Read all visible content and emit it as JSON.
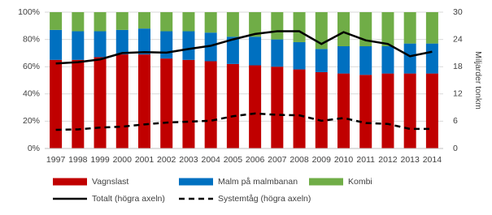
{
  "chart_data": {
    "type": "bar",
    "stacked": true,
    "categories": [
      "1997",
      "1998",
      "1999",
      "2000",
      "2001",
      "2002",
      "2003",
      "2004",
      "2005",
      "2006",
      "2007",
      "2008",
      "2009",
      "2010",
      "2011",
      "2012",
      "2013",
      "2014"
    ],
    "y2label": "Miljarder tonkm",
    "ylim": [
      0,
      100
    ],
    "yticks": [
      {
        "value": 0,
        "label": "0%"
      },
      {
        "value": 20,
        "label": "20%"
      },
      {
        "value": 40,
        "label": "40%"
      },
      {
        "value": 60,
        "label": "60%"
      },
      {
        "value": 80,
        "label": "80%"
      },
      {
        "value": 100,
        "label": "100%"
      }
    ],
    "y2lim": [
      0,
      30
    ],
    "y2ticks": [
      0,
      6,
      12,
      18,
      24,
      30
    ],
    "grid": true,
    "series": [
      {
        "name": "Vagnslast",
        "type": "bar",
        "color": "#c00000",
        "values": [
          65,
          65,
          67,
          69,
          69,
          66,
          65,
          64,
          62,
          61,
          60,
          58,
          56,
          55,
          54,
          55,
          55,
          55
        ]
      },
      {
        "name": "Malm på malmbanan",
        "type": "bar",
        "color": "#0070c0",
        "values": [
          22,
          21,
          19,
          18,
          19,
          20,
          21,
          21,
          20,
          21,
          20,
          20,
          17,
          20,
          21,
          20,
          22,
          22
        ]
      },
      {
        "name": "Kombi",
        "type": "bar",
        "color": "#70ad47",
        "values": [
          13,
          14,
          14,
          13,
          12,
          14,
          14,
          15,
          18,
          18,
          20,
          22,
          27,
          25,
          25,
          25,
          23,
          23
        ]
      },
      {
        "name": "Totalt (högra axeln)",
        "type": "line",
        "axis": "y2",
        "color": "#000000",
        "dashed": false,
        "values": [
          18.7,
          19.0,
          19.6,
          21.0,
          21.2,
          21.1,
          21.9,
          22.6,
          24.0,
          25.2,
          25.8,
          25.8,
          23.0,
          25.6,
          23.8,
          23.0,
          20.3,
          21.3
        ]
      },
      {
        "name": "Systemtåg (högra axeln)",
        "type": "line",
        "axis": "y2",
        "color": "#000000",
        "dashed": true,
        "values": [
          4.1,
          4.2,
          4.6,
          4.8,
          5.3,
          5.7,
          5.9,
          6.1,
          7.1,
          7.7,
          7.4,
          7.3,
          6.1,
          6.7,
          5.6,
          5.4,
          4.3,
          4.3
        ]
      }
    ]
  }
}
